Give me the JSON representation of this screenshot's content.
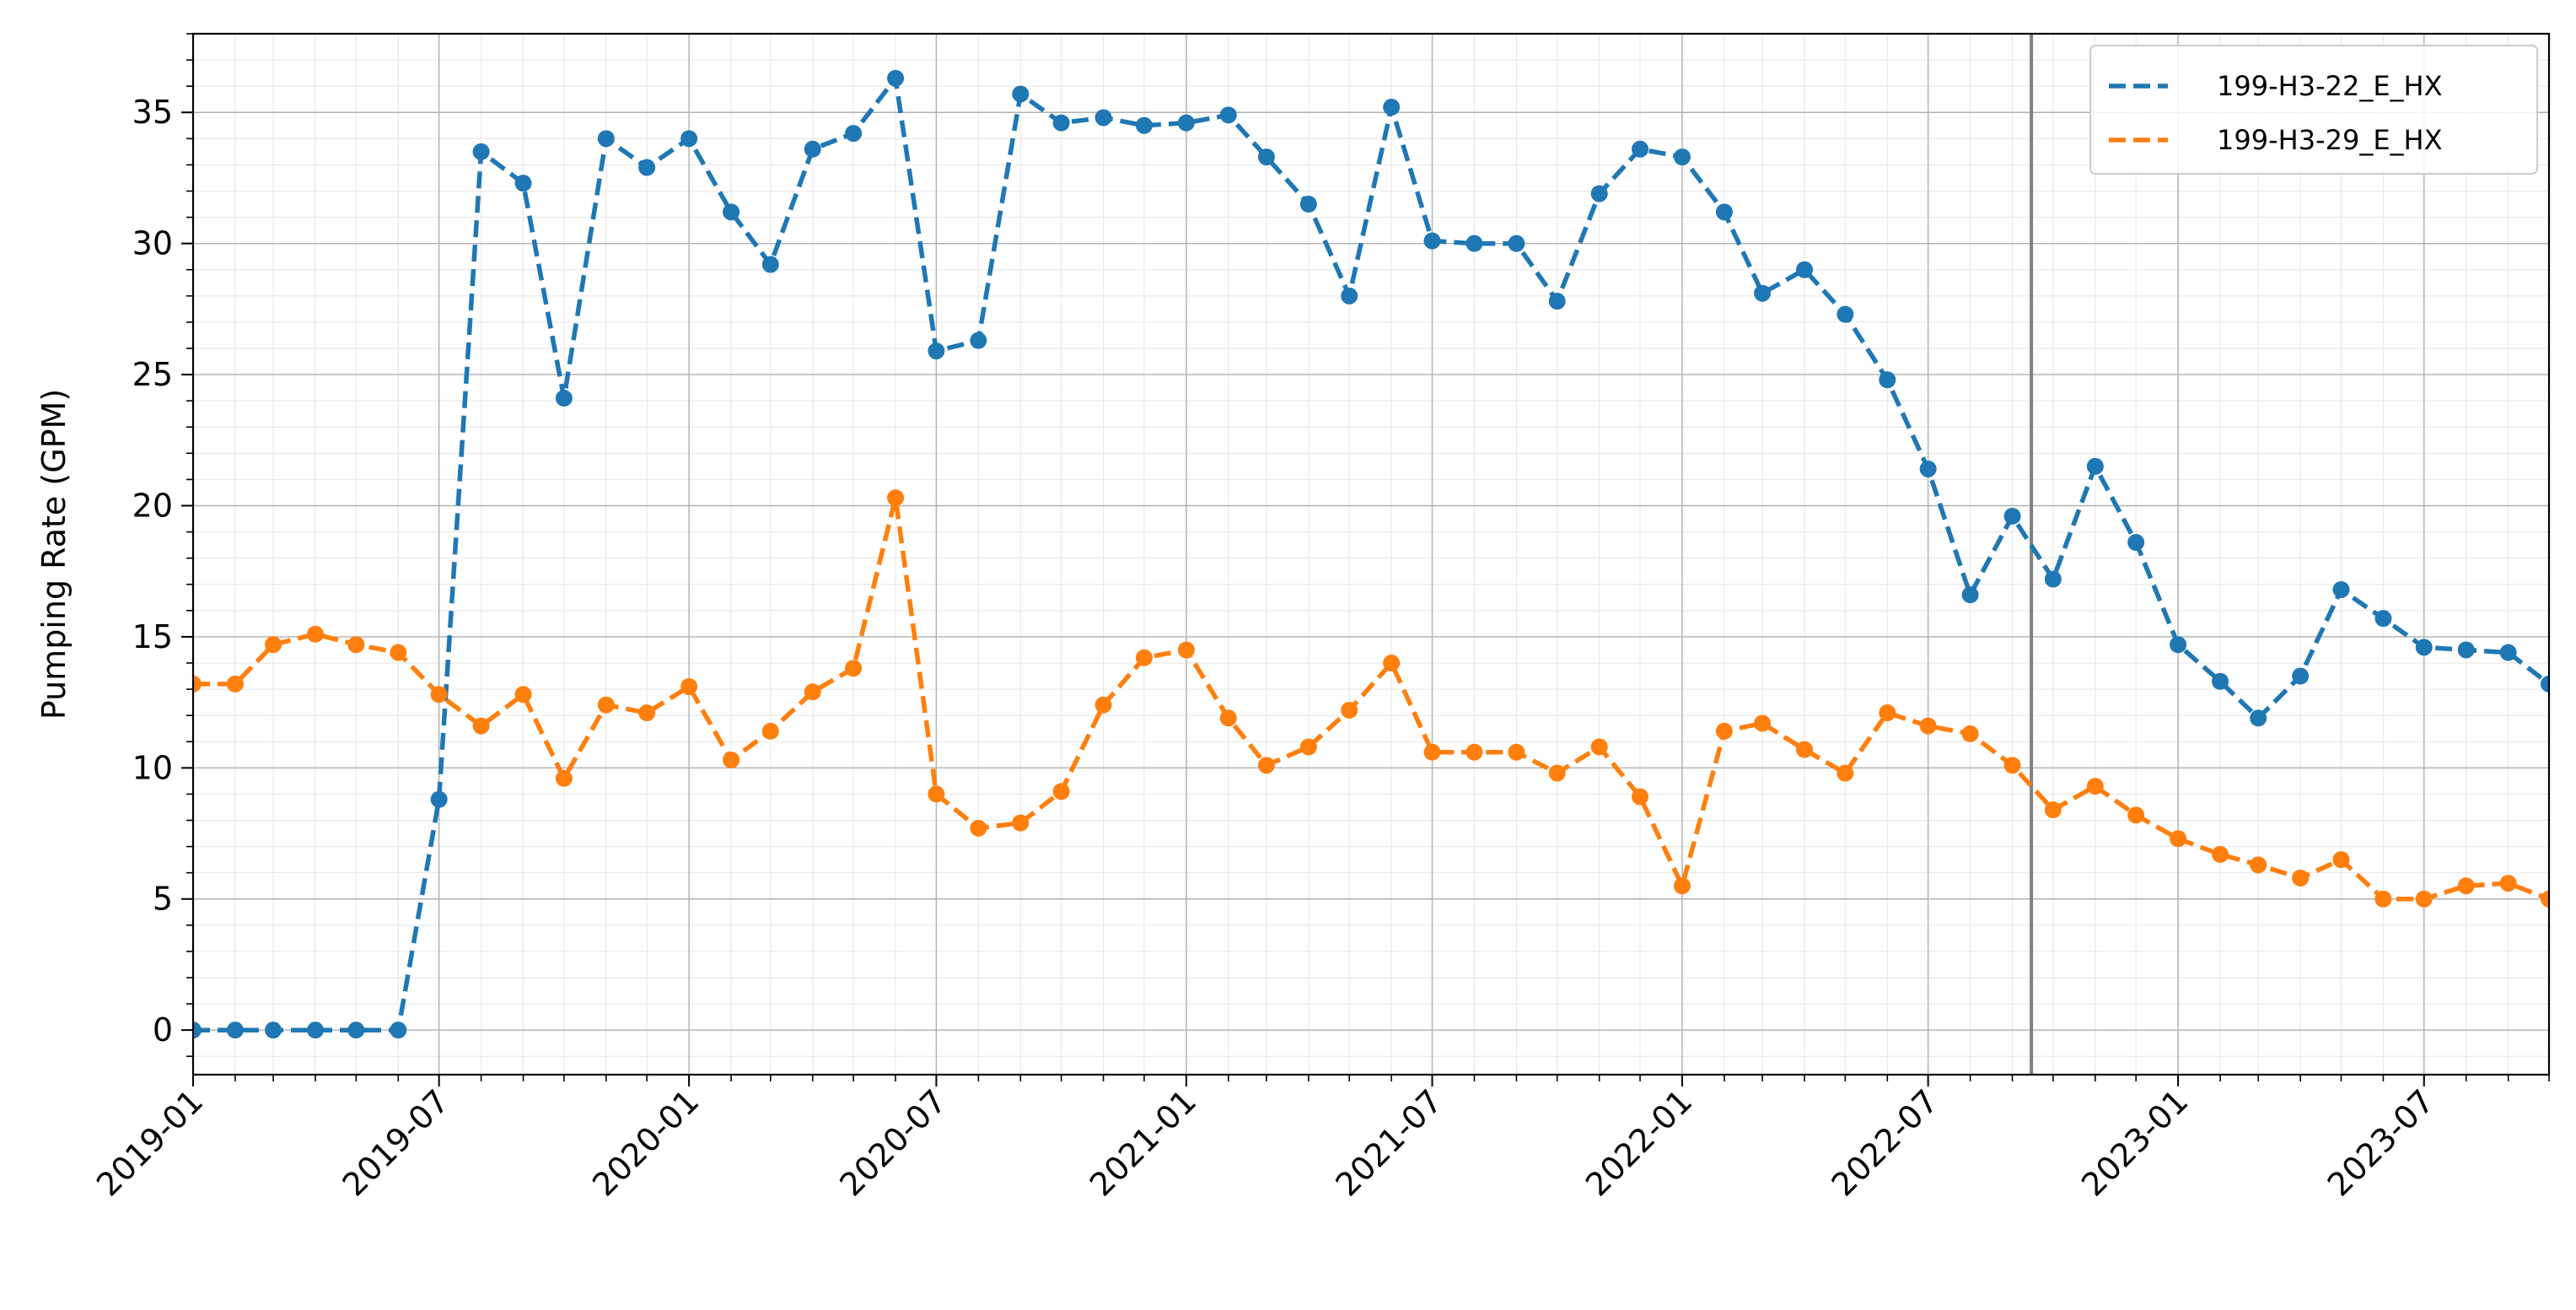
{
  "chart_data": {
    "type": "line",
    "title": "",
    "xlabel": "",
    "ylabel": "Pumping Rate (GPM)",
    "xlim": [
      "2019-01-01",
      "2023-10-01"
    ],
    "ylim": [
      -1.7,
      38
    ],
    "x_ticks": [
      "2019-01",
      "2019-07",
      "2020-01",
      "2020-07",
      "2021-01",
      "2021-07",
      "2022-01",
      "2022-07",
      "2023-01",
      "2023-07"
    ],
    "y_ticks": [
      0,
      5,
      10,
      15,
      20,
      25,
      30,
      35
    ],
    "grid": true,
    "minor_grid": true,
    "legend_position": "top-right",
    "vertical_line": "2022-09-15",
    "x": [
      "2019-01-01",
      "2019-02-01",
      "2019-03-01",
      "2019-04-01",
      "2019-05-01",
      "2019-06-01",
      "2019-07-01",
      "2019-08-01",
      "2019-09-01",
      "2019-10-01",
      "2019-11-01",
      "2019-12-01",
      "2020-01-01",
      "2020-02-01",
      "2020-03-01",
      "2020-04-01",
      "2020-05-01",
      "2020-06-01",
      "2020-07-01",
      "2020-08-01",
      "2020-09-01",
      "2020-10-01",
      "2020-11-01",
      "2020-12-01",
      "2021-01-01",
      "2021-02-01",
      "2021-03-01",
      "2021-04-01",
      "2021-05-01",
      "2021-06-01",
      "2021-07-01",
      "2021-08-01",
      "2021-09-01",
      "2021-10-01",
      "2021-11-01",
      "2021-12-01",
      "2022-01-01",
      "2022-02-01",
      "2022-03-01",
      "2022-04-01",
      "2022-05-01",
      "2022-06-01",
      "2022-07-01",
      "2022-08-01",
      "2022-09-01",
      "2022-10-01",
      "2022-11-01",
      "2022-12-01",
      "2023-01-01",
      "2023-02-01",
      "2023-03-01",
      "2023-04-01",
      "2023-05-01",
      "2023-06-01",
      "2023-07-01",
      "2023-08-01",
      "2023-09-01",
      "2023-10-01"
    ],
    "series": [
      {
        "name": "199-H3-22_E_HX",
        "color": "#1f77b4",
        "values": [
          0,
          0,
          0,
          0,
          0,
          0,
          8.8,
          33.5,
          32.3,
          24.1,
          34.0,
          32.9,
          34.0,
          31.2,
          29.2,
          33.6,
          34.2,
          36.3,
          25.9,
          26.3,
          35.7,
          34.6,
          34.8,
          34.5,
          34.6,
          34.9,
          33.3,
          31.5,
          28.0,
          35.2,
          30.1,
          30.0,
          30.0,
          27.8,
          31.9,
          33.6,
          33.3,
          31.2,
          28.1,
          29.0,
          27.3,
          24.8,
          21.4,
          16.6,
          19.6,
          17.2,
          21.5,
          18.6,
          14.7,
          13.3,
          11.9,
          13.5,
          16.8,
          15.7,
          14.6,
          14.5,
          14.4,
          13.2
        ]
      },
      {
        "name": "199-H3-29_E_HX",
        "color": "#ff7f0e",
        "values": [
          13.2,
          13.2,
          14.7,
          15.1,
          14.7,
          14.4,
          12.8,
          11.6,
          12.8,
          9.6,
          12.4,
          12.1,
          13.1,
          10.3,
          11.4,
          12.9,
          13.8,
          20.3,
          9.0,
          7.7,
          7.9,
          9.1,
          12.4,
          14.2,
          14.5,
          11.9,
          10.1,
          10.8,
          12.2,
          14.0,
          10.6,
          10.6,
          10.6,
          9.8,
          10.8,
          8.9,
          5.5,
          11.4,
          11.7,
          10.7,
          9.8,
          12.1,
          11.6,
          11.3,
          10.1,
          8.4,
          9.3,
          8.2,
          7.3,
          6.7,
          6.3,
          5.8,
          6.5,
          5.0,
          5.0,
          5.5,
          5.6,
          5.0
        ]
      }
    ]
  }
}
